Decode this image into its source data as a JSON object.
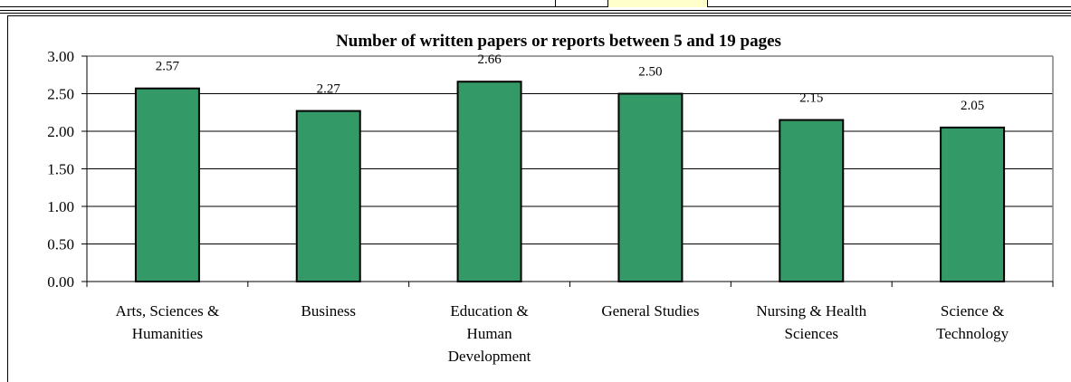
{
  "colors": {
    "bar_fill": "#339966",
    "bar_stroke": "#000000",
    "grid": "#000000",
    "plot_border": "#808080",
    "highlight_cell": "#ffffcc"
  },
  "chart_data": {
    "type": "bar",
    "title": "Number of written papers or reports between 5 and 19 pages",
    "xlabel": "",
    "ylabel": "",
    "ylim": [
      0,
      3
    ],
    "y_ticks": [
      "0.00",
      "0.50",
      "1.00",
      "1.50",
      "2.00",
      "2.50",
      "3.00"
    ],
    "y_tick_values": [
      0,
      0.5,
      1,
      1.5,
      2,
      2.5,
      3
    ],
    "grid": true,
    "legend": "none",
    "categories": [
      [
        "Arts, Sciences &",
        "Humanities"
      ],
      [
        "Business"
      ],
      [
        "Education &",
        "Human",
        "Development"
      ],
      [
        "General Studies"
      ],
      [
        "Nursing & Health",
        "Sciences"
      ],
      [
        "Science &",
        "Technology"
      ]
    ],
    "values": [
      2.57,
      2.27,
      2.66,
      2.5,
      2.15,
      2.05
    ],
    "data_labels": [
      "2.57",
      "2.27",
      "2.66",
      "2.50",
      "2.15",
      "2.05"
    ]
  }
}
